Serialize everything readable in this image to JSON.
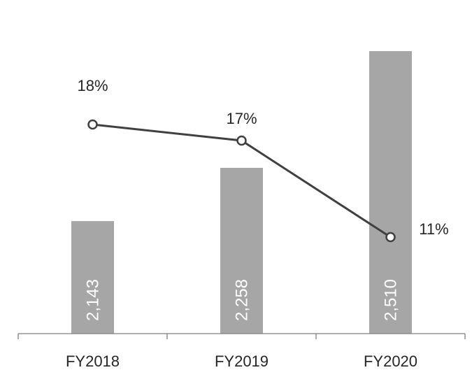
{
  "chart_data": {
    "type": "bar",
    "categories": [
      "FY2018",
      "FY2019",
      "FY2020"
    ],
    "series": [
      {
        "type": "bar",
        "values": [
          2143,
          2258,
          2510
        ],
        "value_labels": [
          "2,143",
          "2,258",
          "2,510"
        ],
        "color": "#a6a6a6"
      },
      {
        "type": "line",
        "values": [
          18,
          17,
          11
        ],
        "value_labels": [
          "18%",
          "17%",
          "11%"
        ],
        "color": "#404040",
        "marker": "open-circle"
      }
    ],
    "title": "",
    "xlabel": "",
    "ylabel": "",
    "bar_axis_range": [
      1900,
      2560
    ],
    "line_axis_range": [
      5,
      24
    ],
    "grid": false,
    "legend": "none"
  }
}
